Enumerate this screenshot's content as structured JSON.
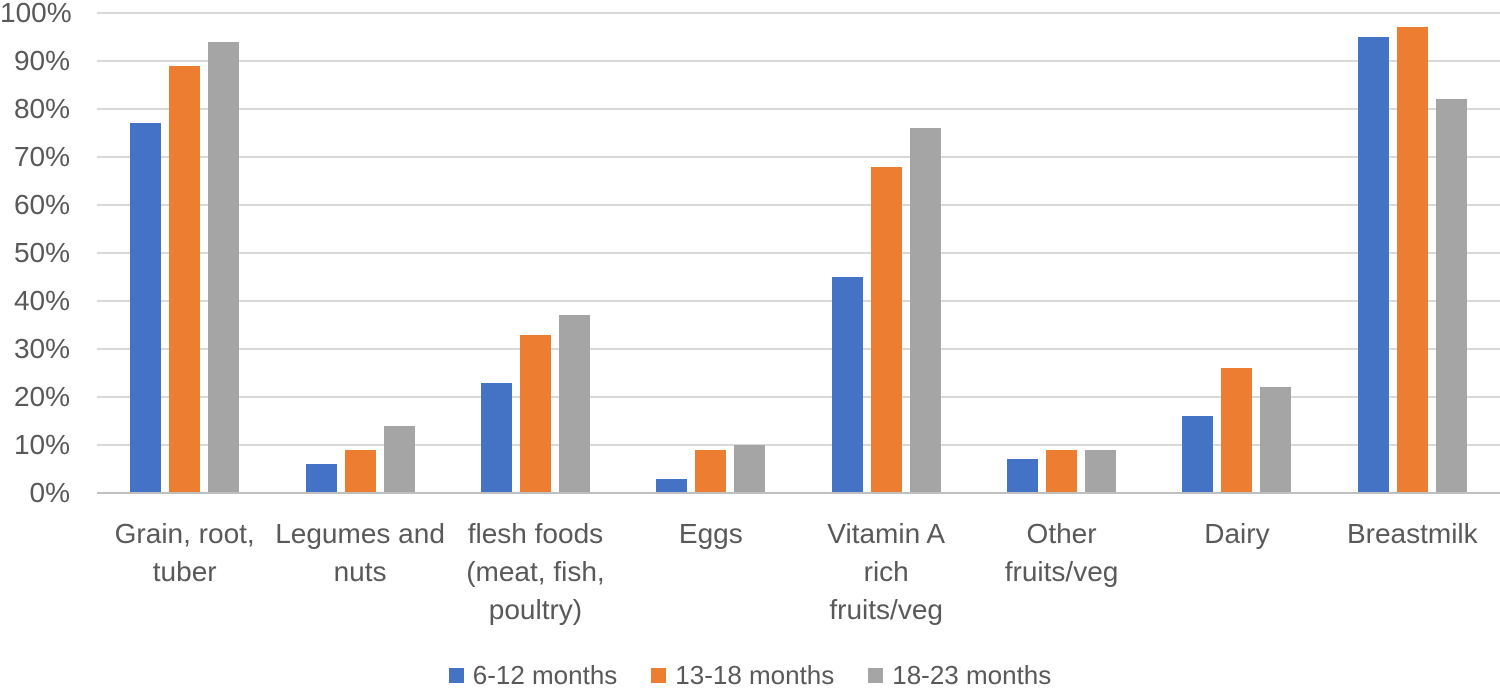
{
  "chart_data": {
    "type": "bar",
    "categories": [
      "Grain, root, tuber",
      "Legumes and nuts",
      "flesh foods (meat, fish, poultry)",
      "Eggs",
      "Vitamin A rich fruits/veg",
      "Other fruits/veg",
      "Dairy",
      "Breastmilk"
    ],
    "category_display_lines": [
      [
        "Grain, root,",
        "tuber"
      ],
      [
        "Legumes and",
        "nuts"
      ],
      [
        "flesh foods",
        "(meat, fish,",
        "poultry)"
      ],
      [
        "Eggs"
      ],
      [
        "Vitamin A",
        "rich",
        "fruits/veg"
      ],
      [
        "Other",
        "fruits/veg"
      ],
      [
        "Dairy"
      ],
      [
        "Breastmilk"
      ]
    ],
    "series": [
      {
        "name": "6-12 months",
        "color": "#4472C4",
        "values": [
          77,
          6,
          23,
          3,
          45,
          7,
          16,
          95
        ]
      },
      {
        "name": "13-18 months",
        "color": "#ED7D31",
        "values": [
          89,
          9,
          33,
          9,
          68,
          9,
          26,
          97
        ]
      },
      {
        "name": "18-23 months",
        "color": "#A5A5A5",
        "values": [
          94,
          14,
          37,
          10,
          76,
          9,
          22,
          82
        ]
      }
    ],
    "y_ticks": [
      "0%",
      "10%",
      "20%",
      "30%",
      "40%",
      "50%",
      "60%",
      "70%",
      "80%",
      "90%",
      "100%"
    ],
    "ylim": [
      0,
      100
    ],
    "grid": true,
    "legend_position": "bottom",
    "xlabel": "",
    "ylabel": ""
  },
  "style_colors": {
    "gridline": "#D9D9D9",
    "axis_line": "#BFBFBF",
    "label_text": "#595959"
  }
}
